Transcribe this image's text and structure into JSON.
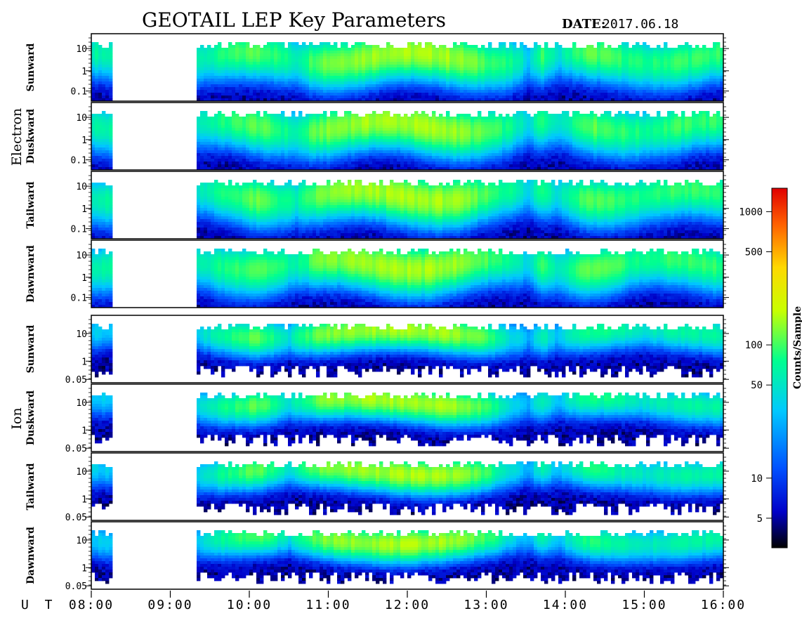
{
  "header": {
    "title": "GEOTAIL LEP Key Parameters",
    "date_label": "DATE:",
    "date_value": "2017.06.18"
  },
  "chart_data": {
    "type": "heatmap",
    "title": "GEOTAIL LEP Key Parameters",
    "date": "2017.06.18",
    "x_axis": {
      "label": "U T",
      "range": [
        "08:00",
        "16:00"
      ],
      "ticks": [
        "08:00",
        "09:00",
        "10:00",
        "11:00",
        "12:00",
        "13:00",
        "14:00",
        "15:00",
        "16:00"
      ]
    },
    "colorbar": {
      "label": "Counts/Sample",
      "scale": "log",
      "range": [
        3,
        1500
      ],
      "ticks": [
        5,
        10,
        50,
        100,
        500,
        1000
      ],
      "colormap": [
        "#000000",
        "#0000c8",
        "#0050ff",
        "#00c8ff",
        "#00ff90",
        "#c8ff00",
        "#ffd800",
        "#ff6000",
        "#e00000"
      ]
    },
    "groups": [
      {
        "name": "Electron",
        "y_scale": "log",
        "y_ticks": [
          "10",
          "1",
          "0.1"
        ],
        "panels": [
          "Sunward",
          "Duskward",
          "Tailward",
          "Dawnward"
        ]
      },
      {
        "name": "Ion",
        "y_scale": "log",
        "y_ticks": [
          "10",
          "1",
          "0.05"
        ],
        "panels": [
          "Sunward",
          "Duskward",
          "Tailward",
          "Dawnward"
        ]
      }
    ],
    "data_gaps_ut": [
      [
        "08:15",
        "09:20"
      ],
      [
        "13:38",
        "13:40"
      ]
    ],
    "intensity_profile_electron": {
      "x_hours": [
        8.0,
        8.25,
        9.3,
        10.1,
        10.6,
        10.9,
        11.6,
        12.5,
        12.9,
        13.3,
        13.55,
        13.7,
        13.9,
        14.3,
        15.0,
        15.4,
        16.0
      ],
      "peak_counts": [
        60,
        60,
        45,
        110,
        55,
        120,
        150,
        150,
        110,
        70,
        30,
        90,
        40,
        110,
        70,
        90,
        85
      ]
    },
    "intensity_profile_ion": {
      "x_hours": [
        8.0,
        8.25,
        9.3,
        10.1,
        10.5,
        10.9,
        11.6,
        12.5,
        12.9,
        13.3,
        13.55,
        13.7,
        13.9,
        14.3,
        15.0,
        15.4,
        16.0
      ],
      "peak_counts": [
        30,
        30,
        28,
        110,
        40,
        120,
        150,
        150,
        110,
        40,
        20,
        60,
        25,
        80,
        45,
        60,
        60
      ]
    }
  }
}
